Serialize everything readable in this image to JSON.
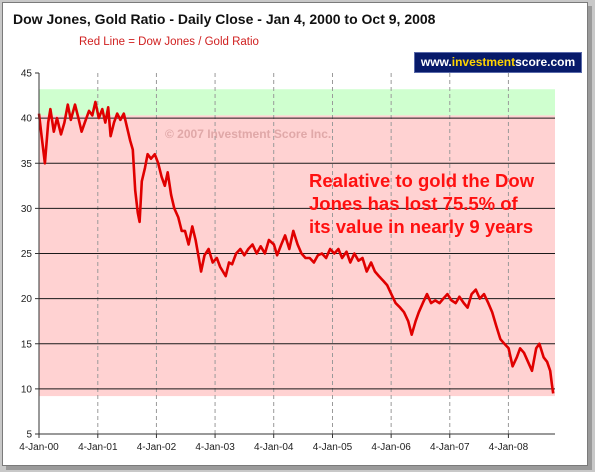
{
  "header": {
    "title": "Dow Jones, Gold Ratio - Daily Close - Jan 4, 2000 to Oct 9, 2008",
    "subtitle": "Red Line =  Dow Jones / Gold Ratio",
    "badge_pre": "www.",
    "badge_hl": "investment",
    "badge_post": "score.com"
  },
  "colors": {
    "line": "#e00000",
    "top_band": "#cfffcf",
    "main_band": "#ffd2d2",
    "annotation": "#ff1010"
  },
  "chart_data": {
    "type": "line",
    "title": "Dow Jones, Gold Ratio - Daily Close - Jan 4, 2000 to Oct 9, 2008",
    "xlabel": "",
    "ylabel": "",
    "ylim": [
      5,
      45
    ],
    "yticks": [
      5,
      10,
      15,
      20,
      25,
      30,
      35,
      40,
      45
    ],
    "xticks": [
      "4-Jan-00",
      "4-Jan-01",
      "4-Jan-02",
      "4-Jan-03",
      "4-Jan-04",
      "4-Jan-05",
      "4-Jan-06",
      "4-Jan-07",
      "4-Jan-08"
    ],
    "grid": "horizontal solid, vertical dashed",
    "bands": [
      {
        "from": 40.3,
        "to": 43.2,
        "color": "#cfffcf"
      },
      {
        "from": 9.2,
        "to": 40.3,
        "color": "#ffd2d2"
      }
    ],
    "series": [
      {
        "name": "Dow Jones / Gold Ratio",
        "x": [
          "2000-01-04",
          "2000-01-20",
          "2000-02-10",
          "2000-03-01",
          "2000-03-15",
          "2000-04-05",
          "2000-04-25",
          "2000-05-20",
          "2000-06-10",
          "2000-07-01",
          "2000-07-20",
          "2000-08-15",
          "2000-09-05",
          "2000-09-25",
          "2000-10-15",
          "2000-11-10",
          "2000-12-01",
          "2000-12-20",
          "2001-01-10",
          "2001-02-01",
          "2001-02-20",
          "2001-03-10",
          "2001-03-25",
          "2001-04-15",
          "2001-05-05",
          "2001-05-25",
          "2001-06-15",
          "2001-07-05",
          "2001-07-25",
          "2001-08-10",
          "2001-08-25",
          "2001-09-10",
          "2001-09-21",
          "2001-10-05",
          "2001-10-25",
          "2001-11-10",
          "2001-12-01",
          "2001-12-25",
          "2002-01-15",
          "2002-02-05",
          "2002-02-25",
          "2002-03-15",
          "2002-04-05",
          "2002-04-25",
          "2002-05-20",
          "2002-06-10",
          "2002-07-01",
          "2002-07-23",
          "2002-08-15",
          "2002-09-05",
          "2002-09-25",
          "2002-10-09",
          "2002-10-30",
          "2002-11-25",
          "2002-12-20",
          "2003-01-15",
          "2003-02-05",
          "2003-03-11",
          "2003-04-01",
          "2003-04-20",
          "2003-05-15",
          "2003-06-10",
          "2003-07-05",
          "2003-07-30",
          "2003-08-25",
          "2003-09-20",
          "2003-10-15",
          "2003-11-10",
          "2003-12-05",
          "2004-01-05",
          "2004-01-25",
          "2004-02-20",
          "2004-03-15",
          "2004-04-10",
          "2004-05-05",
          "2004-06-01",
          "2004-06-25",
          "2004-07-20",
          "2004-08-15",
          "2004-09-10",
          "2004-10-05",
          "2004-10-30",
          "2004-11-25",
          "2004-12-20",
          "2005-01-15",
          "2005-02-10",
          "2005-03-05",
          "2005-04-01",
          "2005-04-25",
          "2005-05-20",
          "2005-06-15",
          "2005-07-10",
          "2005-08-05",
          "2005-09-01",
          "2005-09-25",
          "2005-10-20",
          "2005-11-15",
          "2005-12-10",
          "2006-01-05",
          "2006-02-01",
          "2006-03-01",
          "2006-03-25",
          "2006-04-20",
          "2006-05-12",
          "2006-06-05",
          "2006-06-25",
          "2006-07-20",
          "2006-08-15",
          "2006-09-10",
          "2006-10-05",
          "2006-11-01",
          "2006-11-25",
          "2006-12-20",
          "2007-01-15",
          "2007-02-10",
          "2007-03-05",
          "2007-04-01",
          "2007-04-25",
          "2007-05-20",
          "2007-06-15",
          "2007-07-10",
          "2007-08-05",
          "2007-09-01",
          "2007-09-25",
          "2007-10-20",
          "2007-11-15",
          "2007-12-10",
          "2008-01-05",
          "2008-01-30",
          "2008-02-25",
          "2008-03-17",
          "2008-04-10",
          "2008-05-05",
          "2008-05-30",
          "2008-06-25",
          "2008-07-15",
          "2008-08-10",
          "2008-09-01",
          "2008-09-20",
          "2008-10-01",
          "2008-10-09"
        ],
        "y": [
          40.5,
          38.0,
          35.0,
          39.5,
          41.0,
          38.5,
          40.0,
          38.2,
          39.5,
          41.5,
          39.8,
          41.5,
          40.0,
          38.5,
          39.5,
          40.8,
          40.3,
          41.8,
          40.0,
          41.0,
          39.5,
          41.2,
          38.0,
          39.5,
          40.5,
          39.8,
          40.5,
          39.0,
          37.5,
          36.5,
          32.0,
          29.5,
          28.5,
          33.0,
          34.5,
          36.0,
          35.5,
          36.0,
          35.0,
          33.5,
          32.5,
          34.0,
          31.5,
          30.0,
          29.0,
          27.5,
          27.5,
          26.0,
          28.0,
          26.5,
          24.5,
          23.0,
          24.8,
          25.5,
          24.0,
          24.5,
          23.5,
          22.5,
          24.0,
          23.8,
          25.0,
          25.5,
          24.8,
          25.5,
          26.0,
          25.0,
          25.8,
          25.0,
          26.5,
          26.0,
          24.8,
          26.0,
          27.0,
          25.5,
          27.5,
          26.0,
          25.0,
          24.5,
          24.5,
          24.0,
          24.8,
          25.0,
          24.5,
          25.5,
          25.0,
          25.5,
          24.5,
          25.2,
          24.0,
          25.0,
          24.2,
          24.5,
          23.0,
          24.0,
          23.0,
          22.5,
          22.0,
          21.5,
          20.5,
          19.5,
          19.0,
          18.5,
          17.5,
          16.0,
          17.5,
          18.5,
          19.5,
          20.5,
          19.5,
          19.8,
          19.5,
          20.0,
          20.5,
          19.8,
          19.5,
          20.2,
          19.5,
          19.0,
          20.5,
          21.0,
          20.0,
          20.5,
          19.5,
          18.5,
          17.0,
          15.5,
          15.0,
          14.5,
          12.5,
          13.5,
          14.5,
          14.0,
          13.0,
          12.0,
          14.5,
          15.0,
          13.5,
          13.0,
          12.0,
          10.5,
          9.5
        ]
      }
    ],
    "annotation": {
      "lines": [
        "Realative to gold the Dow",
        "Jones has lost 75.5% of",
        "its value in nearly 9 years"
      ]
    },
    "copyright": "© 2007 Investment Score Inc."
  }
}
